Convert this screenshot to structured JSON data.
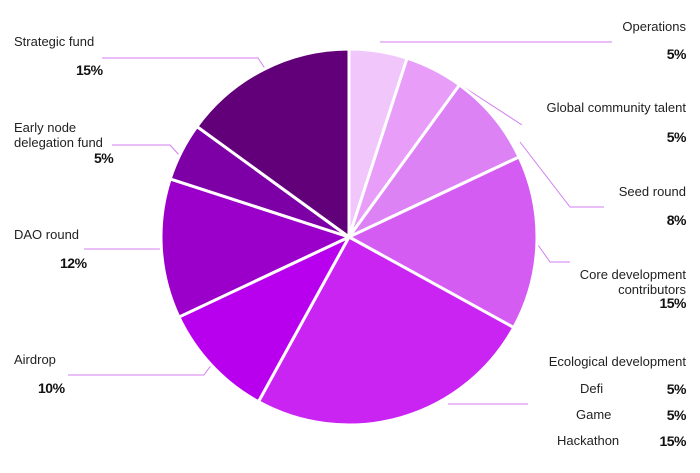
{
  "chart_data": {
    "type": "pie",
    "slices": [
      {
        "label": "Operations",
        "value": 5,
        "value_label": "5%",
        "color": "#f1c6fb"
      },
      {
        "label": "Global community talent",
        "value": 5,
        "value_label": "5%",
        "color": "#e89df8"
      },
      {
        "label": "Seed round",
        "value": 8,
        "value_label": "8%",
        "color": "#dd82f5"
      },
      {
        "label": "Core development contributors",
        "value": 15,
        "value_label": "15%",
        "color": "#d45cf3"
      },
      {
        "label": "Ecological development",
        "color": "#ca24f3",
        "parts": [
          {
            "label": "Defi",
            "value": 5,
            "value_label": "5%"
          },
          {
            "label": "Game",
            "value": 5,
            "value_label": "5%"
          },
          {
            "label": "Hackathon",
            "value": 15,
            "value_label": "15%"
          }
        ]
      },
      {
        "label": "Airdrop",
        "value": 10,
        "value_label": "10%",
        "color": "#b900ee"
      },
      {
        "label": "DAO round",
        "value": 12,
        "value_label": "12%",
        "color": "#9a00c9"
      },
      {
        "label": "Early node delegation fund",
        "value": 5,
        "value_label": "5%",
        "color": "#7c00a6"
      },
      {
        "label": "Strategic fund",
        "value": 15,
        "value_label": "15%",
        "color": "#620079"
      }
    ]
  }
}
